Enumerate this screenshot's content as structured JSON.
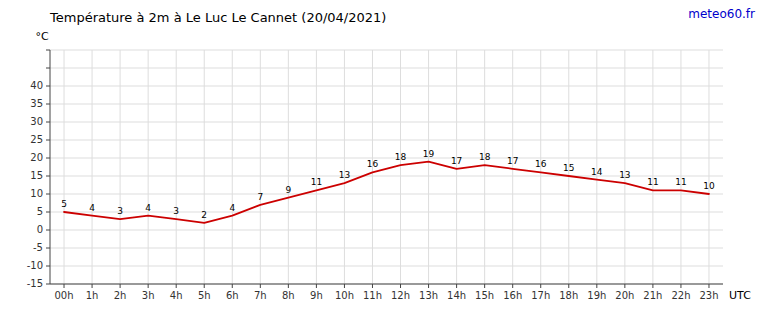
{
  "chart_data": {
    "type": "line",
    "title": "Température à 2m à Le Luc Le Cannet (20/04/2021)",
    "annotations": [
      {
        "text": "meteo60.fr",
        "color": "#0000cc"
      }
    ],
    "y_label": "°C",
    "x_label": "UTC",
    "categories": [
      "00h",
      "1h",
      "2h",
      "3h",
      "4h",
      "5h",
      "6h",
      "7h",
      "8h",
      "9h",
      "10h",
      "11h",
      "12h",
      "13h",
      "14h",
      "15h",
      "16h",
      "17h",
      "18h",
      "19h",
      "20h",
      "21h",
      "22h",
      "23h"
    ],
    "values": [
      5,
      4,
      3,
      4,
      3,
      2,
      4,
      7,
      9,
      11,
      13,
      16,
      18,
      19,
      17,
      18,
      17,
      16,
      15,
      14,
      13,
      11,
      11,
      10
    ],
    "color": "#cc0000",
    "ylim": [
      -15,
      50
    ],
    "yticks": [
      -15,
      -10,
      -5,
      0,
      5,
      10,
      15,
      20,
      25,
      30,
      35,
      40,
      {
        "value": 45,
        "label": null
      },
      {
        "value": 50,
        "label": null
      }
    ],
    "grid": true,
    "data_labels": true
  }
}
